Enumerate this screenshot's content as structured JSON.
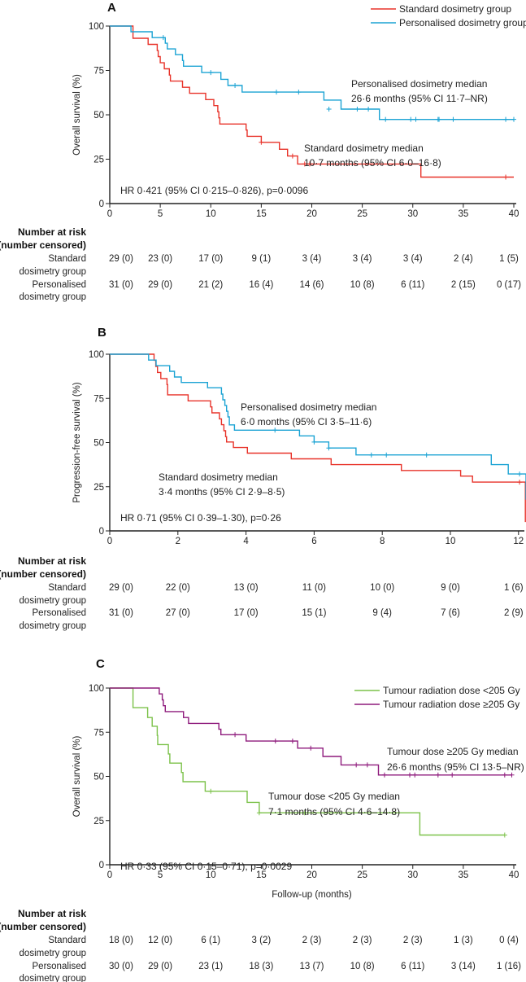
{
  "chart_data": [
    {
      "type": "line",
      "panel": "A",
      "ylabel": "Overall survival (%)",
      "xlabel": "",
      "xlim": [
        0,
        40
      ],
      "ylim": [
        0,
        100
      ],
      "xticks": [
        "0",
        "5",
        "10",
        "15",
        "20",
        "25",
        "30",
        "35",
        "40"
      ],
      "yticks": [
        "0",
        "25",
        "50",
        "75",
        "100"
      ],
      "grid": false,
      "legend_position": "top-right",
      "series": [
        {
          "name": "Standard dosimetry group",
          "color": "#e8332a",
          "end": 40,
          "steps": [
            [
              2.3,
              93.1
            ],
            [
              3.8,
              89.7
            ],
            [
              4.7,
              86.2
            ],
            [
              4.8,
              82.8
            ],
            [
              5.0,
              79.3
            ],
            [
              5.4,
              75.9
            ],
            [
              5.9,
              72.4
            ],
            [
              6.0,
              69.0
            ],
            [
              7.2,
              65.5
            ],
            [
              7.9,
              62.1
            ],
            [
              9.5,
              58.6
            ],
            [
              10.3,
              55.2
            ],
            [
              10.7,
              51.7
            ],
            [
              10.8,
              48.3
            ],
            [
              10.9,
              44.8
            ],
            [
              13.5,
              41.4
            ],
            [
              13.6,
              37.9
            ],
            [
              15.0,
              34.5
            ],
            [
              16.8,
              30.6
            ],
            [
              17.6,
              26.8
            ],
            [
              18.6,
              22.3
            ],
            [
              30.8,
              14.9
            ]
          ],
          "censored": [
            [
              15.0,
              34.5
            ],
            [
              18.1,
              26.8
            ],
            [
              19.3,
              22.3
            ],
            [
              19.8,
              22.3
            ],
            [
              39.2,
              14.9
            ]
          ]
        },
        {
          "name": "Personalised dosimetry group",
          "color": "#1ba3d4",
          "end": 40,
          "steps": [
            [
              2.1,
              96.8
            ],
            [
              4.2,
              93.5
            ],
            [
              5.5,
              90.3
            ],
            [
              5.7,
              87.1
            ],
            [
              6.5,
              83.9
            ],
            [
              7.2,
              80.6
            ],
            [
              7.3,
              77.4
            ],
            [
              9.1,
              73.8
            ],
            [
              11.0,
              70.0
            ],
            [
              11.7,
              66.5
            ],
            [
              13.1,
              62.8
            ],
            [
              21.2,
              58.3
            ],
            [
              22.9,
              53.2
            ],
            [
              26.7,
              47.4
            ]
          ],
          "censored": [
            [
              5.3,
              93.5
            ],
            [
              10.0,
              73.8
            ],
            [
              12.4,
              66.5
            ],
            [
              16.5,
              62.8
            ],
            [
              18.7,
              62.8
            ],
            [
              21.7,
              53.2
            ],
            [
              24.5,
              53.2
            ],
            [
              25.6,
              53.2
            ],
            [
              27.3,
              47.4
            ],
            [
              29.8,
              47.4
            ],
            [
              30.3,
              47.4
            ],
            [
              32.5,
              47.4
            ],
            [
              32.6,
              47.4
            ],
            [
              34.0,
              47.4
            ],
            [
              39.2,
              47.4
            ],
            [
              40,
              47.4
            ]
          ]
        }
      ],
      "annotations": [
        "Personalised dosimetry median",
        "26·6 months (95% CI 11·7–NR)",
        "Standard dosimetry median",
        "10·7 months (95% CI 6·0–16·8)"
      ],
      "hr_text": "HR 0·421 (95% CI 0·215–0·826), p=0·0096",
      "risk_table": {
        "header": [
          "Number at risk",
          "(number censored)"
        ],
        "rows": [
          {
            "label": [
              "Standard",
              "dosimetry group"
            ],
            "values": [
              "29 (0)",
              "23 (0)",
              "17 (0)",
              "9 (1)",
              "3 (4)",
              "3 (4)",
              "3 (4)",
              "2 (4)",
              "1 (5)"
            ]
          },
          {
            "label": [
              "Personalised",
              "dosimetry group"
            ],
            "values": [
              "31 (0)",
              "29 (0)",
              "21 (2)",
              "16 (4)",
              "14 (6)",
              "10 (8)",
              "6 (11)",
              "2 (15)",
              "0 (17)"
            ]
          }
        ]
      }
    },
    {
      "type": "line",
      "panel": "B",
      "ylabel": "Progression-free survival (%)",
      "xlabel": "",
      "xlim": [
        0,
        12.3
      ],
      "ylim": [
        0,
        100
      ],
      "xticks": [
        "0",
        "2",
        "4",
        "6",
        "8",
        "10",
        "12"
      ],
      "yticks": [
        "0",
        "25",
        "50",
        "75",
        "100"
      ],
      "grid": false,
      "series": [
        {
          "color": "#e8332a",
          "end": 12.2,
          "steps": [
            [
              1.3,
              96.6
            ],
            [
              1.35,
              93.1
            ],
            [
              1.4,
              89.7
            ],
            [
              1.5,
              86.2
            ],
            [
              1.68,
              82.8
            ],
            [
              1.7,
              77.0
            ],
            [
              2.3,
              73.6
            ],
            [
              2.96,
              70.2
            ],
            [
              3.0,
              66.8
            ],
            [
              3.22,
              63.4
            ],
            [
              3.28,
              60.1
            ],
            [
              3.35,
              56.7
            ],
            [
              3.4,
              53.3
            ],
            [
              3.43,
              50.3
            ],
            [
              3.63,
              47.2
            ],
            [
              4.04,
              44.0
            ],
            [
              5.33,
              40.8
            ],
            [
              6.5,
              37.5
            ],
            [
              8.56,
              34.2
            ],
            [
              10.3,
              31.0
            ],
            [
              10.65,
              27.6
            ],
            [
              12.2,
              5.0
            ]
          ],
          "censored": [
            [
              12.03,
              27.6
            ]
          ]
        },
        {
          "color": "#1ba3d4",
          "end": 12.3,
          "steps": [
            [
              1.14,
              96.7
            ],
            [
              1.36,
              93.5
            ],
            [
              1.76,
              90.3
            ],
            [
              1.9,
              87.1
            ],
            [
              2.1,
              84.0
            ],
            [
              2.87,
              81.0
            ],
            [
              3.28,
              77.4
            ],
            [
              3.32,
              74.2
            ],
            [
              3.38,
              71.0
            ],
            [
              3.43,
              67.7
            ],
            [
              3.47,
              64.5
            ],
            [
              3.51,
              60.0
            ],
            [
              3.66,
              57.0
            ],
            [
              5.57,
              53.8
            ],
            [
              6.0,
              50.3
            ],
            [
              6.43,
              46.9
            ],
            [
              7.23,
              43.0
            ],
            [
              11.2,
              37.5
            ],
            [
              11.7,
              32.2
            ],
            [
              12.22,
              18.0
            ],
            [
              12.3,
              5.0
            ]
          ],
          "censored": [
            [
              4.85,
              57.0
            ],
            [
              6.0,
              50.3
            ],
            [
              6.43,
              46.9
            ],
            [
              7.68,
              43.0
            ],
            [
              8.12,
              43.0
            ],
            [
              9.3,
              43.0
            ],
            [
              12.03,
              32.2
            ]
          ]
        }
      ],
      "annotations": [
        "Personalised dosimetry median",
        "6·0 months (95% CI 3·5–11·6)",
        "Standard dosimetry median",
        "3·4 months (95% CI 2·9–8·5)"
      ],
      "hr_text": "HR 0·71 (95% CI 0·39–1·30), p=0·26",
      "risk_table": {
        "header": [
          "Number at risk",
          "(number censored)"
        ],
        "rows": [
          {
            "label": [
              "Standard",
              "dosimetry group"
            ],
            "values": [
              "29 (0)",
              "22 (0)",
              "13 (0)",
              "11 (0)",
              "10 (0)",
              "9 (0)",
              "1 (6)"
            ]
          },
          {
            "label": [
              "Personalised",
              "dosimetry group"
            ],
            "values": [
              "31 (0)",
              "27 (0)",
              "17 (0)",
              "15 (1)",
              "9 (4)",
              "7 (6)",
              "2 (9)"
            ]
          }
        ]
      }
    },
    {
      "type": "line",
      "panel": "C",
      "ylabel": "Overall survival (%)",
      "xlabel": "Follow-up (months)",
      "xlim": [
        0,
        40
      ],
      "ylim": [
        0,
        100
      ],
      "xticks": [
        "0",
        "5",
        "10",
        "15",
        "20",
        "25",
        "30",
        "35",
        "40"
      ],
      "yticks": [
        "0",
        "25",
        "50",
        "75",
        "100"
      ],
      "grid": false,
      "legend_position": "top-right",
      "series": [
        {
          "name": "Tumour radiation dose <205 Gy",
          "color": "#7cc24a",
          "end": 39.1,
          "steps": [
            [
              2.3,
              88.9
            ],
            [
              3.75,
              83.3
            ],
            [
              4.2,
              78.4
            ],
            [
              4.7,
              73.2
            ],
            [
              4.75,
              68.0
            ],
            [
              5.8,
              62.7
            ],
            [
              5.95,
              57.5
            ],
            [
              7.1,
              52.2
            ],
            [
              7.25,
              47.0
            ],
            [
              9.45,
              41.6
            ],
            [
              13.6,
              35.3
            ],
            [
              14.8,
              29.4
            ],
            [
              30.7,
              16.8
            ]
          ],
          "censored": [
            [
              10.0,
              41.6
            ],
            [
              14.8,
              29.4
            ],
            [
              19.3,
              29.4
            ],
            [
              39.1,
              16.8
            ]
          ]
        },
        {
          "name": "Tumour radiation dose ≥205 Gy",
          "color": "#8e1a7c",
          "end": 39.8,
          "steps": [
            [
              4.9,
              96.7
            ],
            [
              5.2,
              93.3
            ],
            [
              5.3,
              90.0
            ],
            [
              5.5,
              86.7
            ],
            [
              7.3,
              83.3
            ],
            [
              7.8,
              80.0
            ],
            [
              10.8,
              76.7
            ],
            [
              11.0,
              73.6
            ],
            [
              13.5,
              70.0
            ],
            [
              18.6,
              66.0
            ],
            [
              21.1,
              61.3
            ],
            [
              22.9,
              56.5
            ],
            [
              26.6,
              50.8
            ]
          ],
          "censored": [
            [
              12.4,
              73.6
            ],
            [
              16.4,
              70.0
            ],
            [
              18.1,
              70.0
            ],
            [
              19.9,
              66.0
            ],
            [
              24.4,
              56.5
            ],
            [
              25.5,
              56.5
            ],
            [
              27.2,
              50.8
            ],
            [
              29.7,
              50.8
            ],
            [
              30.2,
              50.8
            ],
            [
              32.5,
              50.8
            ],
            [
              33.9,
              50.8
            ],
            [
              39.1,
              50.8
            ],
            [
              39.8,
              50.8
            ]
          ]
        }
      ],
      "annotations": [
        "Tumour dose ≥205 Gy median",
        "26·6 months (95% CI 13·5–NR)",
        "Tumour dose <205 Gy median",
        "7·1 months (95% CI 4·6–14·8)"
      ],
      "hr_text": "HR 0·33 (95% CI 0·15–0·71), p=0·0029",
      "risk_table": {
        "header": [
          "Number at risk",
          "(number censored)"
        ],
        "rows": [
          {
            "label": [
              "Standard",
              "dosimetry group"
            ],
            "values": [
              "18 (0)",
              "12 (0)",
              "6 (1)",
              "3 (2)",
              "2 (3)",
              "2 (3)",
              "2 (3)",
              "1 (3)",
              "0 (4)"
            ]
          },
          {
            "label": [
              "Personalised",
              "dosimetry group"
            ],
            "values": [
              "30 (0)",
              "29 (0)",
              "23 (1)",
              "18 (3)",
              "13 (7)",
              "10 (8)",
              "6 (11)",
              "3 (14)",
              "1 (16)"
            ]
          }
        ]
      }
    }
  ]
}
